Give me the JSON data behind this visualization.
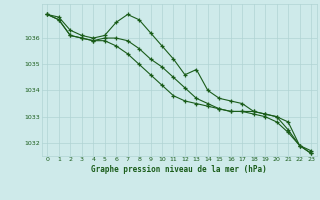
{
  "title": "Graphe pression niveau de la mer (hPa)",
  "background_color": "#ceeaea",
  "grid_color": "#b0d4d4",
  "line_color": "#1a5c1a",
  "xlim": [
    -0.5,
    23.5
  ],
  "ylim": [
    1031.5,
    1037.3
  ],
  "yticks": [
    1032,
    1033,
    1034,
    1035,
    1036
  ],
  "xticks": [
    0,
    1,
    2,
    3,
    4,
    5,
    6,
    7,
    8,
    9,
    10,
    11,
    12,
    13,
    14,
    15,
    16,
    17,
    18,
    19,
    20,
    21,
    22,
    23
  ],
  "series": [
    [
      1036.9,
      1036.8,
      1036.3,
      1036.1,
      1036.0,
      1036.1,
      1036.6,
      1036.9,
      1036.7,
      1036.2,
      1035.7,
      1035.2,
      1034.6,
      1034.8,
      1034.0,
      1033.7,
      1033.6,
      1033.5,
      1033.2,
      1033.1,
      1033.0,
      1032.5,
      1031.9,
      1031.7
    ],
    [
      1036.9,
      1036.7,
      1036.1,
      1036.0,
      1035.9,
      1036.0,
      1036.0,
      1035.9,
      1035.6,
      1035.2,
      1034.9,
      1034.5,
      1034.1,
      1033.7,
      1033.5,
      1033.3,
      1033.2,
      1033.2,
      1033.1,
      1033.0,
      1032.8,
      1032.4,
      1031.9,
      1031.6
    ],
    [
      1036.9,
      1036.7,
      1036.1,
      1036.0,
      1035.9,
      1035.9,
      1035.7,
      1035.4,
      1035.0,
      1034.6,
      1034.2,
      1033.8,
      1033.6,
      1033.5,
      1033.4,
      1033.3,
      1033.2,
      1033.2,
      1033.2,
      1033.1,
      1033.0,
      1032.8,
      1031.9,
      1031.6
    ]
  ]
}
